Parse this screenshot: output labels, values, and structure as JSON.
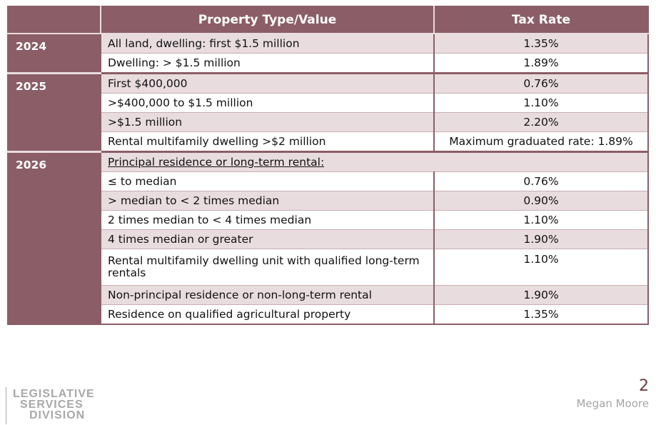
{
  "table": {
    "headers": [
      "",
      "Property Type/Value",
      "Tax Rate"
    ],
    "groups": [
      {
        "year": "2024",
        "rows": [
          {
            "type": "All land, dwelling: first $1.5 million",
            "rate": "1.35%"
          },
          {
            "type": "Dwelling: > $1.5 million",
            "rate": "1.89%"
          }
        ]
      },
      {
        "year": "2025",
        "rows": [
          {
            "type": "First $400,000",
            "rate": "0.76%"
          },
          {
            "type": ">$400,000 to $1.5 million",
            "rate": "1.10%"
          },
          {
            "type": ">$1.5 million",
            "rate": "2.20%"
          },
          {
            "type": "Rental multifamily dwelling >$2 million",
            "rate": "Maximum graduated rate: 1.89%"
          }
        ]
      },
      {
        "year": "2026",
        "subheading": "Principal residence or long-term rental:",
        "rows": [
          {
            "type": "≤ to median",
            "rate": "0.76%"
          },
          {
            "type": "> median to < 2 times median",
            "rate": "0.90%"
          },
          {
            "type": "2 times median to < 4 times median",
            "rate": "1.10%"
          },
          {
            "type": "4 times median or greater",
            "rate": "1.90%"
          },
          {
            "type": "Rental multifamily dwelling unit with qualified long-term rentals",
            "rate": "1.10%"
          },
          {
            "type": "Non-principal residence or non-long-term rental",
            "rate": "1.90%"
          },
          {
            "type": "Residence on qualified agricultural property",
            "rate": "1.35%"
          }
        ]
      }
    ]
  },
  "footer": {
    "logo_lines": [
      "LEGISLATIVE",
      "SERVICES",
      "DIVISION"
    ],
    "page_number": "2",
    "author": "Megan Moore"
  },
  "colors": {
    "header": "#8b5e67",
    "row_shade": "#e8dcdf",
    "page_number": "#6b3d44"
  }
}
